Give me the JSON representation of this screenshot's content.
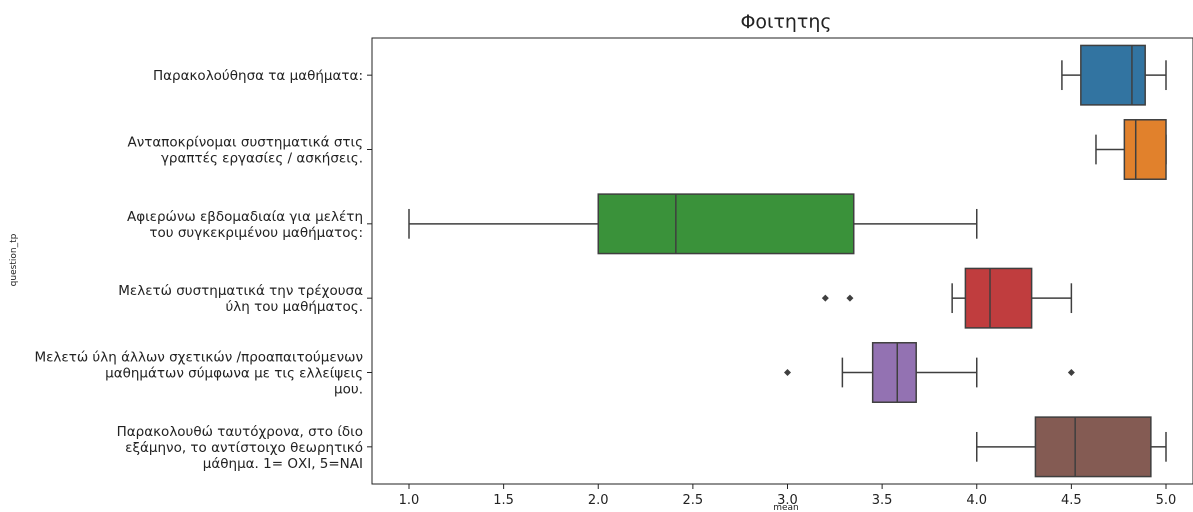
{
  "chart_data": {
    "type": "boxplot",
    "orientation": "horizontal",
    "title": "Φοιτητης",
    "xlabel": "mean",
    "ylabel": "question_tp",
    "xlim": [
      0.82,
      5.14
    ],
    "xticks": [
      1.0,
      1.5,
      2.0,
      2.5,
      3.0,
      3.5,
      4.0,
      4.5,
      5.0
    ],
    "xtick_labels": [
      "1.0",
      "1.5",
      "2.0",
      "2.5",
      "3.0",
      "3.5",
      "4.0",
      "4.5",
      "5.0"
    ],
    "grid": false,
    "categories": [
      {
        "label_lines": [
          "Παρακολούθησα τα μαθήματα:"
        ],
        "color": "#3274a1",
        "whisker_low": 4.45,
        "q1": 4.55,
        "median": 4.82,
        "q3": 4.89,
        "whisker_high": 5.0,
        "outliers": []
      },
      {
        "label_lines": [
          "Ανταποκρίνομαι συστηματικά στις",
          "γραπτές εργασίες / ασκήσεις."
        ],
        "color": "#e1812c",
        "whisker_low": 4.63,
        "q1": 4.78,
        "median": 4.84,
        "q3": 5.0,
        "whisker_high": 5.0,
        "outliers": []
      },
      {
        "label_lines": [
          "Αφιερώνω εβδομαδιαία για μελέτη",
          "του συγκεκριμένου μαθήματος:"
        ],
        "color": "#3a923a",
        "whisker_low": 1.0,
        "q1": 2.0,
        "median": 2.41,
        "q3": 3.35,
        "whisker_high": 4.0,
        "outliers": []
      },
      {
        "label_lines": [
          "Μελετώ συστηματικά την τρέχουσα",
          "ύλη του μαθήματος."
        ],
        "color": "#c03d3e",
        "whisker_low": 3.87,
        "q1": 3.94,
        "median": 4.07,
        "q3": 4.29,
        "whisker_high": 4.5,
        "outliers": [
          3.2,
          3.33
        ]
      },
      {
        "label_lines": [
          "Μελετώ ύλη άλλων σχετικών /προαπαιτούμενων",
          "μαθημάτων σύμφωνα με τις ελλείψεις",
          "μου."
        ],
        "color": "#9372b2",
        "whisker_low": 3.29,
        "q1": 3.45,
        "median": 3.58,
        "q3": 3.68,
        "whisker_high": 4.0,
        "outliers": [
          3.0,
          4.5
        ]
      },
      {
        "label_lines": [
          "Παρακολουθώ ταυτόχρονα, στο ίδιο",
          "εξάμηνο, το αντίστοιχο θεωρητικό",
          "μάθημα. 1= ΟΧΙ, 5=ΝΑΙ"
        ],
        "color": "#845b53",
        "whisker_low": 4.0,
        "q1": 4.31,
        "median": 4.52,
        "q3": 4.92,
        "whisker_high": 5.0,
        "outliers": []
      }
    ]
  }
}
